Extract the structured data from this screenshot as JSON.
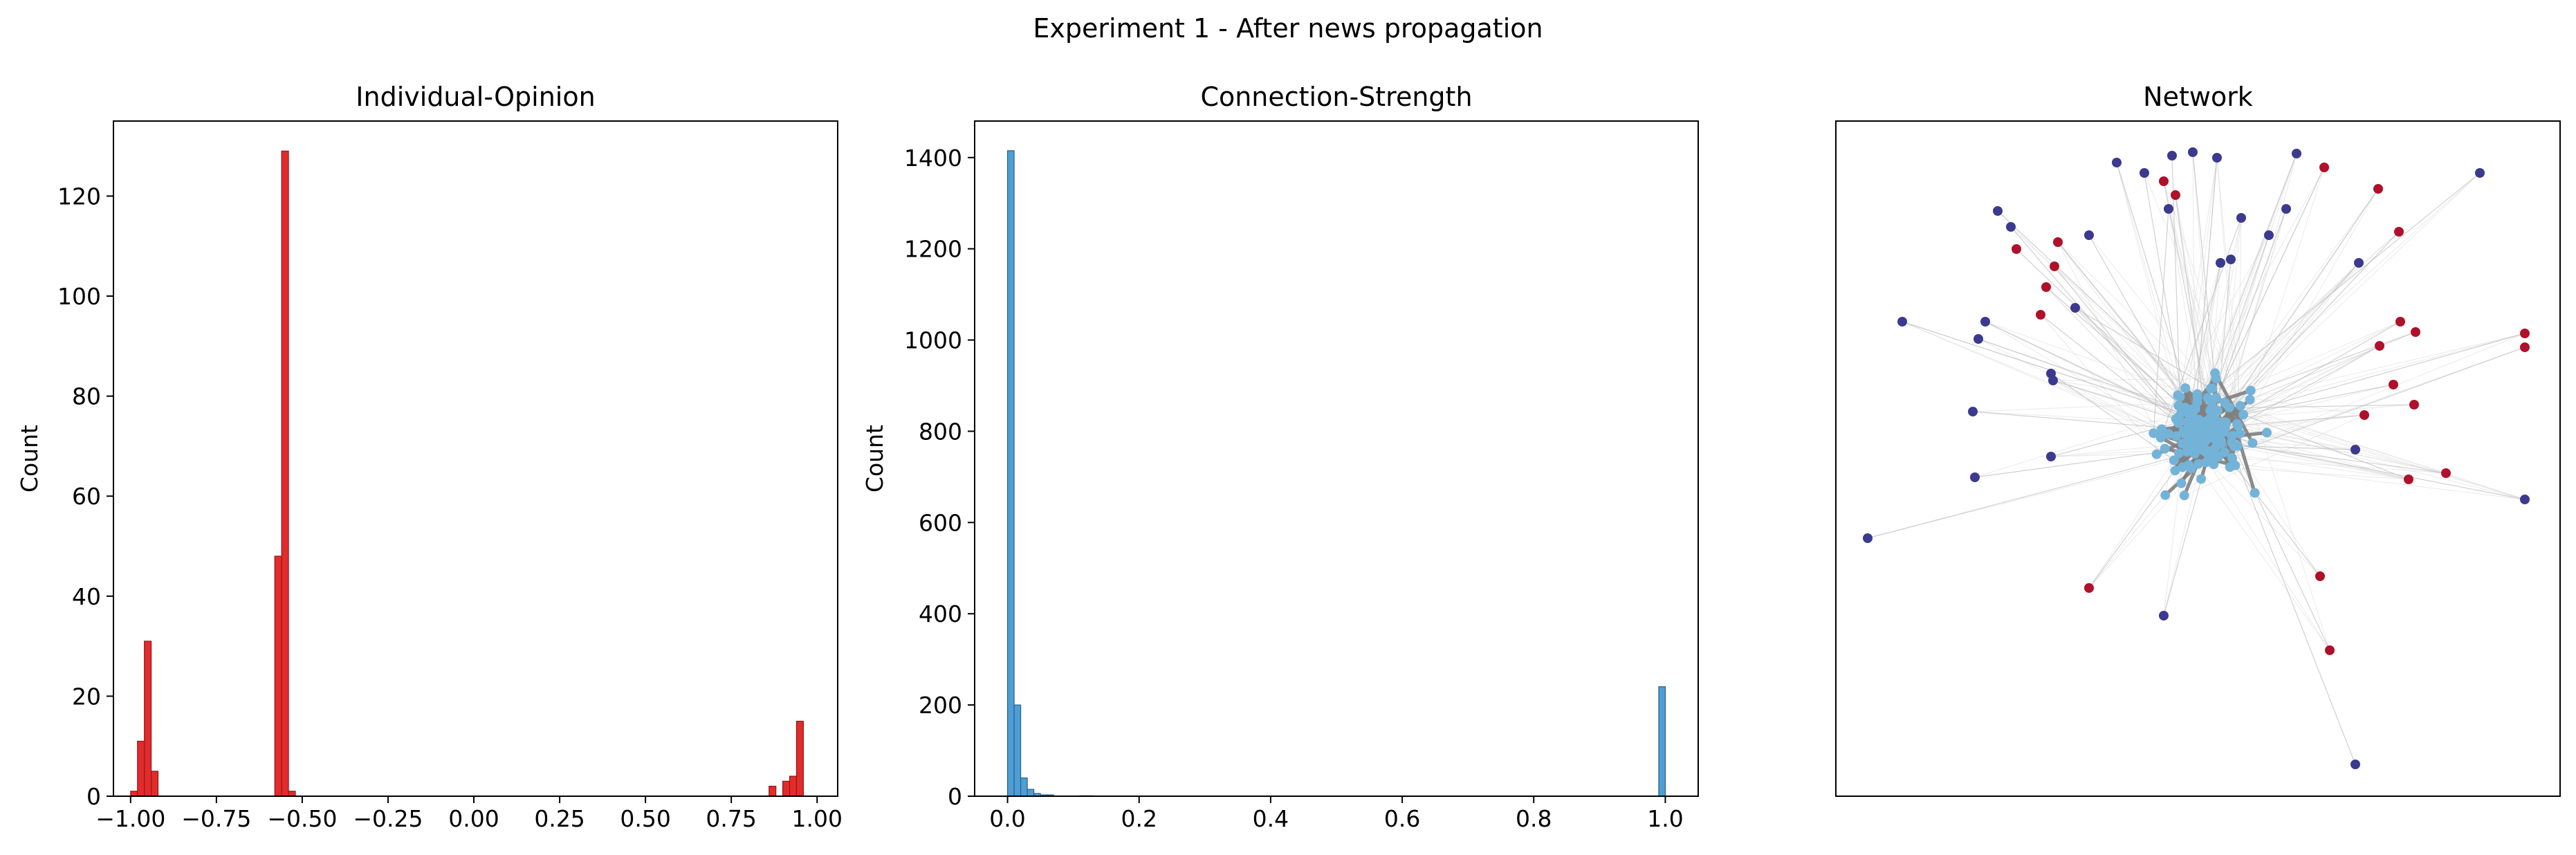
{
  "figure": {
    "title": "Experiment 1 - After news propagation"
  },
  "colors": {
    "opinion_bar": "#e32b2b",
    "opinion_edge": "#8b1a1a",
    "strength_bar": "#4d9ed6",
    "strength_edge": "#2a5f86",
    "node_cluster": "#74b3d8",
    "node_blue": "#3b3a8f",
    "node_red": "#b0102a",
    "edge_strong": "#808080",
    "edge_weak": "#d9d9d9"
  },
  "chart_data": [
    {
      "type": "bar",
      "title": "Individual-Opinion",
      "xlabel": "",
      "ylabel": "Count",
      "xlim": [
        -1.05,
        1.06
      ],
      "ylim": [
        0,
        135
      ],
      "xticks": [
        -1.0,
        -0.75,
        -0.5,
        -0.25,
        0.0,
        0.25,
        0.5,
        0.75,
        1.0
      ],
      "xtick_labels": [
        "−1.00",
        "−0.75",
        "−0.50",
        "−0.25",
        "0.00",
        "0.25",
        "0.50",
        "0.75",
        "1.00"
      ],
      "yticks": [
        0,
        20,
        40,
        60,
        80,
        100,
        120
      ],
      "ytick_labels": [
        "0",
        "20",
        "40",
        "60",
        "80",
        "100",
        "120"
      ],
      "bin_width": 0.02,
      "bins": [
        {
          "x": -1.0,
          "count": 1
        },
        {
          "x": -0.98,
          "count": 11
        },
        {
          "x": -0.96,
          "count": 31
        },
        {
          "x": -0.94,
          "count": 5
        },
        {
          "x": -0.58,
          "count": 48
        },
        {
          "x": -0.56,
          "count": 129
        },
        {
          "x": -0.54,
          "count": 1
        },
        {
          "x": 0.86,
          "count": 2
        },
        {
          "x": 0.9,
          "count": 3
        },
        {
          "x": 0.92,
          "count": 4
        },
        {
          "x": 0.94,
          "count": 15
        }
      ]
    },
    {
      "type": "bar",
      "title": "Connection-Strength",
      "xlabel": "",
      "ylabel": "Count",
      "xlim": [
        -0.05,
        1.05
      ],
      "ylim": [
        0,
        1480
      ],
      "xticks": [
        0.0,
        0.2,
        0.4,
        0.6,
        0.8,
        1.0
      ],
      "xtick_labels": [
        "0.0",
        "0.2",
        "0.4",
        "0.6",
        "0.8",
        "1.0"
      ],
      "yticks": [
        0,
        200,
        400,
        600,
        800,
        1000,
        1200,
        1400
      ],
      "ytick_labels": [
        "0",
        "200",
        "400",
        "600",
        "800",
        "1000",
        "1200",
        "1400"
      ],
      "bin_width": 0.01,
      "bins": [
        {
          "x": 0.0,
          "count": 1415
        },
        {
          "x": 0.01,
          "count": 200
        },
        {
          "x": 0.02,
          "count": 40
        },
        {
          "x": 0.03,
          "count": 15
        },
        {
          "x": 0.04,
          "count": 6
        },
        {
          "x": 0.05,
          "count": 3
        },
        {
          "x": 0.06,
          "count": 3
        },
        {
          "x": 0.11,
          "count": 1
        },
        {
          "x": 0.12,
          "count": 1
        },
        {
          "x": 0.99,
          "count": 240
        }
      ]
    },
    {
      "type": "network",
      "title": "Network",
      "node_groups": [
        "cluster",
        "blue",
        "red"
      ]
    }
  ]
}
